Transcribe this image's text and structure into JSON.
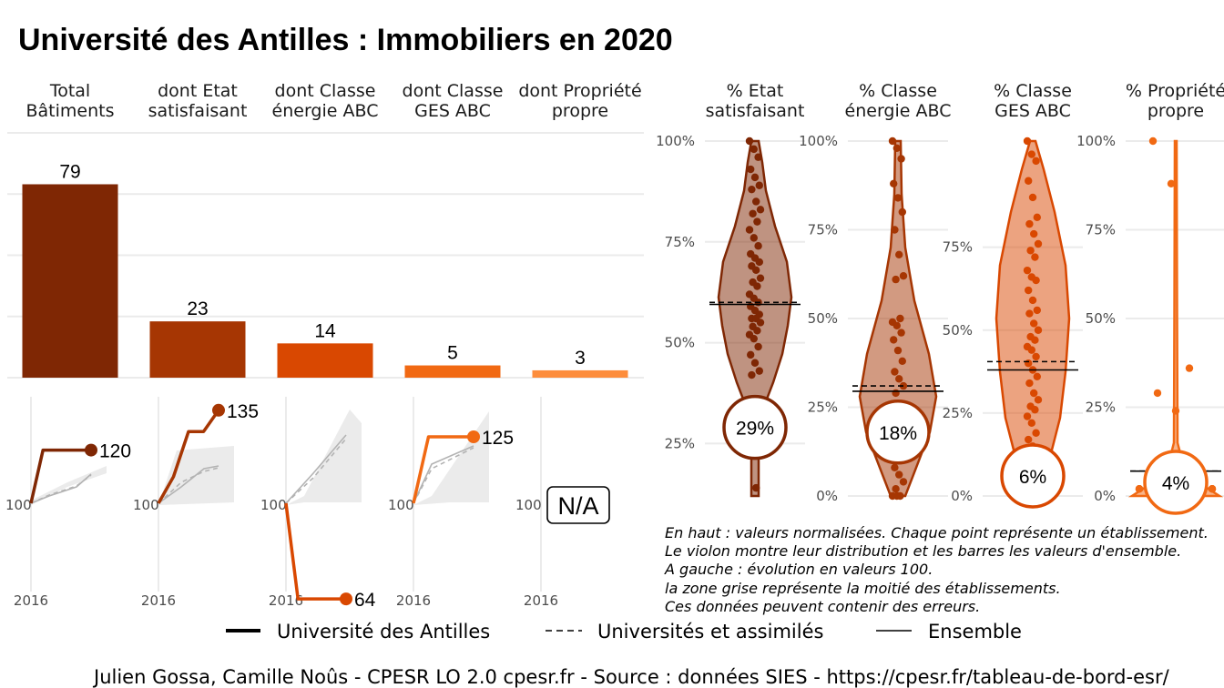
{
  "title": "Université des Antilles  :  Immobiliers en 2020",
  "columns": [
    {
      "line1": "Total",
      "line2": "Bâtiments"
    },
    {
      "line1": "dont Etat",
      "line2": "satisfaisant"
    },
    {
      "line1": "dont Classe",
      "line2": "énergie ABC"
    },
    {
      "line1": "dont Classe",
      "line2": "GES ABC"
    },
    {
      "line1": "dont Propriété",
      "line2": "propre"
    }
  ],
  "violin_headers": [
    {
      "line1": "% Etat",
      "line2": "satisfaisant"
    },
    {
      "line1": "% Classe",
      "line2": "énergie ABC"
    },
    {
      "line1": "% Classe",
      "line2": "GES ABC"
    },
    {
      "line1": "% Propriété",
      "line2": "propre"
    }
  ],
  "chart_data": [
    {
      "type": "bar",
      "categories": [
        "Total Bâtiments",
        "dont Etat satisfaisant",
        "dont Classe énergie ABC",
        "dont Classe GES ABC",
        "dont Propriété propre"
      ],
      "values": [
        79,
        23,
        14,
        5,
        3
      ],
      "data_labels": [
        "79",
        "23",
        "14",
        "5",
        "3"
      ],
      "ylim": [
        0,
        100
      ],
      "colors": [
        "#7f2704",
        "#a63603",
        "#d94801",
        "#f16913",
        "#fd8d3c"
      ],
      "grid": true
    },
    {
      "type": "line",
      "title": "évolution en valeurs 100",
      "x_tick": "2016",
      "y_tick": "100",
      "panels": [
        {
          "end_label": "120",
          "color": "#7f2704",
          "values": [
            100,
            120,
            120,
            120,
            120,
            120
          ]
        },
        {
          "end_label": "135",
          "color": "#a63603",
          "values": [
            100,
            110,
            127,
            127,
            135
          ]
        },
        {
          "end_label": "64",
          "color": "#d94801",
          "values": [
            100,
            64,
            64,
            64,
            64,
            64
          ]
        },
        {
          "end_label": "125",
          "color": "#f16913",
          "values": [
            100,
            125,
            125,
            125,
            125
          ]
        },
        {
          "end_label": "N/A",
          "color": "#fd8d3c",
          "values": []
        }
      ]
    },
    {
      "type": "scatter",
      "subtype": "violin",
      "legend": {
        "position": "bottom",
        "entries": [
          {
            "label": "Université des Antilles",
            "style": "thick solid"
          },
          {
            "label": "Universités et assimilés",
            "style": "dashed"
          },
          {
            "label": "Ensemble",
            "style": "thin solid"
          }
        ]
      },
      "panels": [
        {
          "label": "29%",
          "value": 29,
          "color": "#7f2704",
          "ticks": [
            "25%",
            "50%",
            "75%",
            "100%"
          ],
          "ylim": [
            12,
            100
          ],
          "univ_avg": 60,
          "overall_avg": 59.5,
          "points": [
            100,
            98,
            96,
            93,
            91,
            89,
            88,
            85,
            83,
            82,
            80,
            78,
            76,
            74,
            72,
            71,
            70,
            69,
            68,
            66,
            65,
            64,
            62,
            61,
            60,
            59,
            58,
            57,
            56,
            56,
            55,
            54,
            53,
            52,
            51,
            49,
            47,
            45,
            43,
            42,
            14
          ]
        },
        {
          "label": "18%",
          "value": 18,
          "color": "#a63603",
          "ticks": [
            "0%",
            "25%",
            "50%",
            "75%",
            "100%"
          ],
          "ylim": [
            0,
            100
          ],
          "univ_avg": 31,
          "overall_avg": 29.5,
          "points": [
            100,
            98,
            95,
            88,
            84,
            80,
            75,
            68,
            62,
            61,
            50,
            49,
            48,
            46,
            44,
            41,
            38,
            35,
            33,
            31,
            29,
            26,
            24,
            22,
            20,
            17,
            14,
            12,
            8,
            6,
            4,
            2,
            0,
            0,
            0
          ]
        },
        {
          "label": "6%",
          "value": 6,
          "color": "#d94801",
          "ticks": [
            "0%",
            "25%",
            "50%",
            "75%"
          ],
          "ylim": [
            0,
            107
          ],
          "univ_avg": 40.5,
          "overall_avg": 38,
          "points": [
            107,
            103,
            101,
            95,
            90,
            84,
            82,
            79,
            76,
            74,
            72,
            68,
            66,
            65,
            62,
            59,
            56,
            55,
            52,
            50,
            48,
            47,
            45,
            44,
            42,
            40,
            38,
            36,
            34,
            31,
            29,
            27,
            26,
            24,
            22,
            19,
            17,
            15,
            13,
            10,
            8
          ]
        },
        {
          "label": "4%",
          "value": 4,
          "color": "#f16913",
          "ticks": [
            "0%",
            "25%",
            "50%",
            "75%",
            "100%"
          ],
          "ylim": [
            0,
            100
          ],
          "univ_avg": 7,
          "overall_avg": 7,
          "points": [
            100,
            88,
            36,
            29,
            24,
            2,
            2,
            2,
            2,
            2,
            2
          ]
        }
      ]
    }
  ],
  "notes": [
    "En haut : valeurs normalisées. Chaque point représente un établissement.",
    "Le violon montre leur distribution et les barres les valeurs d'ensemble.",
    "A gauche : évolution en valeurs 100.",
    "la zone grise représente la moitié des établissements.",
    "Ces données peuvent contenir des erreurs."
  ],
  "caption": "Julien Gossa, Camille Noûs - CPESR LO 2.0 cpesr.fr - Source : données SIES - https://cpesr.fr/tableau-de-bord-esr/"
}
